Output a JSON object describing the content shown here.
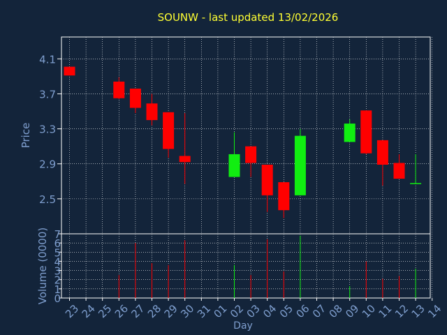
{
  "colors": {
    "background": "#13243a",
    "frame": "#ffffff",
    "grid": "#ffffff",
    "title": "#ffff33",
    "axis_text": "#7f9fcf",
    "up": "#11ee11",
    "down": "#ff0000"
  },
  "chart_data": {
    "type": "candlestick",
    "title": "SOUNW - last updated 13/02/2026",
    "xlabel": "Day",
    "price_panel": {
      "ylabel": "Price",
      "ylim": [
        2.1,
        4.35
      ],
      "yticks": [
        "4.1",
        "3.7",
        "3.3",
        "2.9",
        "2.5"
      ],
      "grid": true
    },
    "volume_panel": {
      "ylabel": "Volume (0000)",
      "ylim": [
        0,
        7
      ],
      "yticks": [
        "0",
        "1",
        "2",
        "3",
        "4",
        "5",
        "6",
        "7"
      ],
      "grid": true
    },
    "x_ticks": [
      "23",
      "24",
      "25",
      "26",
      "27",
      "28",
      "29",
      "30",
      "31",
      "01",
      "02",
      "03",
      "04",
      "05",
      "06",
      "07",
      "08",
      "09",
      "10",
      "11",
      "12",
      "13",
      "14"
    ],
    "candles": [
      {
        "day": "23",
        "open": 4.01,
        "high": 4.01,
        "low": 3.91,
        "close": 3.91,
        "volume": 0
      },
      {
        "day": "26",
        "open": 3.84,
        "high": 3.89,
        "low": 3.64,
        "close": 3.65,
        "volume": 2.5
      },
      {
        "day": "27",
        "open": 3.76,
        "high": 3.76,
        "low": 3.48,
        "close": 3.54,
        "volume": 6.0
      },
      {
        "day": "28",
        "open": 3.59,
        "high": 3.7,
        "low": 3.34,
        "close": 3.4,
        "volume": 3.8
      },
      {
        "day": "29",
        "open": 3.49,
        "high": 3.49,
        "low": 2.97,
        "close": 3.07,
        "volume": 3.6
      },
      {
        "day": "30",
        "open": 2.99,
        "high": 3.48,
        "low": 2.67,
        "close": 2.92,
        "volume": 6.3
      },
      {
        "day": "02",
        "open": 2.75,
        "high": 3.26,
        "low": 2.75,
        "close": 3.01,
        "volume": 3.6
      },
      {
        "day": "03",
        "open": 3.1,
        "high": 3.1,
        "low": 2.75,
        "close": 2.91,
        "volume": 2.5
      },
      {
        "day": "04",
        "open": 2.89,
        "high": 2.89,
        "low": 2.35,
        "close": 2.54,
        "volume": 6.4
      },
      {
        "day": "05",
        "open": 2.69,
        "high": 2.69,
        "low": 2.28,
        "close": 2.37,
        "volume": 2.9
      },
      {
        "day": "06",
        "open": 2.54,
        "high": 3.3,
        "low": 2.54,
        "close": 3.22,
        "volume": 6.8
      },
      {
        "day": "09",
        "open": 3.15,
        "high": 3.41,
        "low": 3.15,
        "close": 3.36,
        "volume": 1.3
      },
      {
        "day": "10",
        "open": 3.51,
        "high": 3.51,
        "low": 3.01,
        "close": 3.02,
        "volume": 4.0
      },
      {
        "day": "11",
        "open": 3.17,
        "high": 3.17,
        "low": 2.65,
        "close": 2.89,
        "volume": 2.1
      },
      {
        "day": "12",
        "open": 2.91,
        "high": 3.01,
        "low": 2.73,
        "close": 2.73,
        "volume": 2.4
      },
      {
        "day": "13",
        "open": 2.67,
        "high": 3.01,
        "low": 2.67,
        "close": 2.68,
        "volume": 3.2
      }
    ]
  }
}
